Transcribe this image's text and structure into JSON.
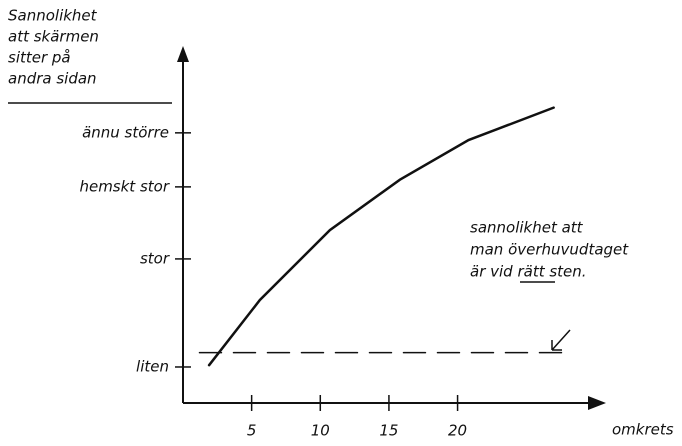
{
  "chart_data": {
    "type": "line",
    "ylabel": [
      "Sannolikhet",
      "att skärmen",
      "sitter på",
      "andra sidan"
    ],
    "xlabel": "omkrets",
    "xlim": [
      0,
      29.5
    ],
    "xticks": [
      5,
      10,
      15,
      20
    ],
    "ylim": [
      0,
      9.8
    ],
    "yticks": [
      {
        "value": 1,
        "label": "liten"
      },
      {
        "value": 4,
        "label": "stor"
      },
      {
        "value": 6,
        "label": "hemskt stor"
      },
      {
        "value": 7.5,
        "label": "ännu större"
      }
    ],
    "series": [
      {
        "color": "#111111",
        "style": "solid",
        "x": [
          1.9,
          5.6,
          10.7,
          15.8,
          20.8,
          27
        ],
        "values": [
          1.05,
          2.86,
          4.8,
          6.2,
          7.3,
          8.2
        ]
      },
      {
        "color": "#111111",
        "style": "dashed",
        "x": [
          1.2,
          28.1
        ],
        "values": [
          1.4,
          1.4
        ]
      }
    ],
    "annotation": [
      "sannolikhet att",
      "man överhuvudtaget",
      "är vid rätt sten."
    ]
  }
}
